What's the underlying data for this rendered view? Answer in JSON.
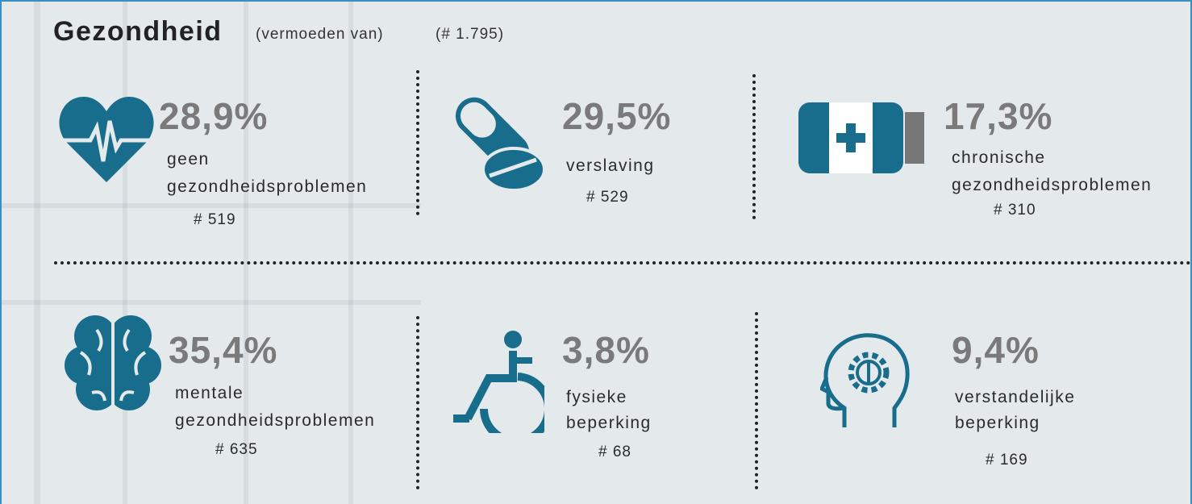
{
  "header": {
    "title": "Gezondheid",
    "subtitle": "(vermoeden van)",
    "total": "(# 1.795)"
  },
  "items": [
    {
      "percent": "28,9%",
      "label": [
        "geen",
        "gezondheidsproblemen"
      ],
      "count": "# 519"
    },
    {
      "percent": "29,5%",
      "label": [
        "verslaving"
      ],
      "count": "# 529"
    },
    {
      "percent": "17,3%",
      "label": [
        "chronische",
        "gezondheidsproblemen"
      ],
      "count": "# 310"
    },
    {
      "percent": "35,4%",
      "label": [
        "mentale",
        "gezondheidsproblemen"
      ],
      "count": "# 635"
    },
    {
      "percent": "3,8%",
      "label": [
        "fysieke",
        "beperking"
      ],
      "count": "# 68"
    },
    {
      "percent": "9,4%",
      "label": [
        "verstandelijke",
        "beperking"
      ],
      "count": "# 169"
    }
  ]
}
